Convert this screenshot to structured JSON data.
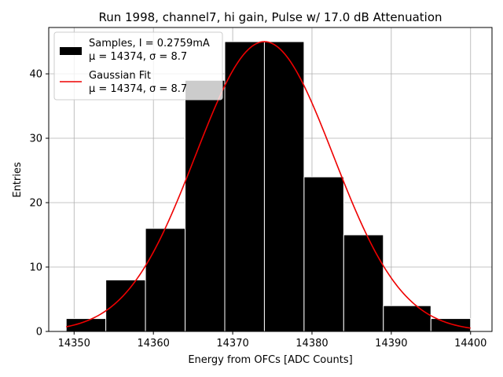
{
  "chart_data": {
    "type": "bar",
    "title": "Run 1998, channel7, hi gain, Pulse w/ 17.0 dB Attenuation",
    "xlabel": "Energy from OFCs [ADC Counts]",
    "ylabel": "Entries",
    "xlim": [
      14346.8,
      14402.7
    ],
    "ylim": [
      0,
      47.2
    ],
    "xticks": [
      14350,
      14360,
      14370,
      14380,
      14390,
      14400
    ],
    "yticks": [
      0,
      10,
      20,
      30,
      40
    ],
    "grid": true,
    "legend_position": "top-left",
    "bins": [
      {
        "x0": 14349,
        "x1": 14354,
        "count": 2
      },
      {
        "x0": 14354,
        "x1": 14359,
        "count": 8
      },
      {
        "x0": 14359,
        "x1": 14364,
        "count": 16
      },
      {
        "x0": 14364,
        "x1": 14369,
        "count": 39
      },
      {
        "x0": 14369,
        "x1": 14374,
        "count": 45
      },
      {
        "x0": 14374,
        "x1": 14379,
        "count": 45
      },
      {
        "x0": 14379,
        "x1": 14384,
        "count": 24
      },
      {
        "x0": 14384,
        "x1": 14389,
        "count": 15
      },
      {
        "x0": 14389,
        "x1": 14395,
        "count": 4
      },
      {
        "x0": 14395,
        "x1": 14400,
        "count": 2
      }
    ],
    "fit": {
      "mu": 14374,
      "sigma": 8.7,
      "amplitude": 45,
      "x_range": [
        14349,
        14400
      ]
    },
    "series": [
      {
        "name": "Samples, I = 0.2759mA",
        "name_line2": "μ = 14374, σ = 8.7",
        "color": "#000000"
      },
      {
        "name": "Gaussian Fit",
        "name_line2": "μ = 14374, σ = 8.7",
        "color": "#ee0000"
      }
    ]
  }
}
